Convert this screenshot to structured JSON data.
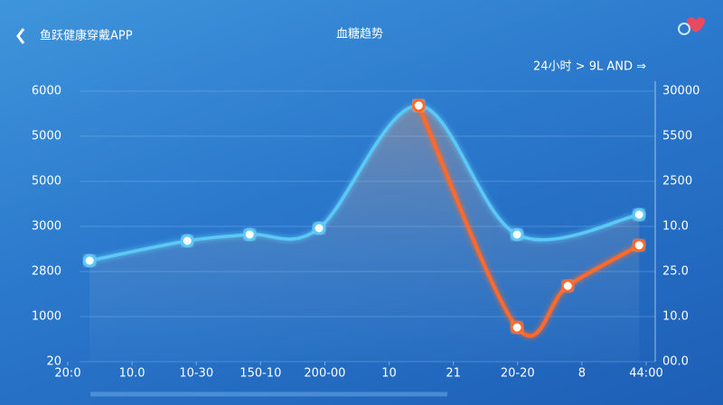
{
  "header": {
    "back_label": "鱼跃健康穿戴APP",
    "range_selector": "24小时 > 9L AND ⇒"
  },
  "chart_data": {
    "type": "line",
    "title": "血糖趋势",
    "xlim": [
      -0.3,
      9.2
    ],
    "xticks": [
      {
        "value": 0,
        "label": "20:0"
      },
      {
        "value": 1,
        "label": "10.0"
      },
      {
        "value": 2,
        "label": "10-30"
      },
      {
        "value": 3,
        "label": "150-10"
      },
      {
        "value": 4,
        "label": "200-00"
      },
      {
        "value": 5,
        "label": "10"
      },
      {
        "value": 6,
        "label": "21"
      },
      {
        "value": 7,
        "label": "20-20"
      },
      {
        "value": 8,
        "label": "8"
      },
      {
        "value": 9,
        "label": "44:00"
      }
    ],
    "ylim": [
      0,
      6000
    ],
    "yticks": [
      {
        "value": 0,
        "label": "20"
      },
      1000,
      {
        "value": 2000,
        "label": "2800"
      },
      3000,
      {
        "value": 4000,
        "label": "5000"
      },
      5000,
      6000
    ],
    "y2lim": [
      0,
      30000
    ],
    "y2ticks": [
      {
        "value": 0,
        "label": "00.0"
      },
      {
        "value": 5000,
        "label": "10.0"
      },
      {
        "value": 10000,
        "label": "25.0"
      },
      {
        "value": 15000,
        "label": "10.0"
      },
      {
        "value": 20000,
        "label": "2500"
      },
      {
        "value": 25000,
        "label": "5500"
      },
      30000
    ],
    "grid": true,
    "series": [
      {
        "color": "#5cc8f5",
        "x": [
          0.34,
          1.86,
          2.83,
          3.91,
          5.46,
          6.99,
          8.89
        ],
        "values": [
          2240,
          2680,
          2820,
          2960,
          5680,
          2820,
          3260
        ]
      },
      {
        "color": "#ff6a2a",
        "x": [
          5.46,
          6.99,
          7.78,
          8.89
        ],
        "values": [
          5680,
          760,
          1680,
          2580
        ]
      }
    ]
  }
}
